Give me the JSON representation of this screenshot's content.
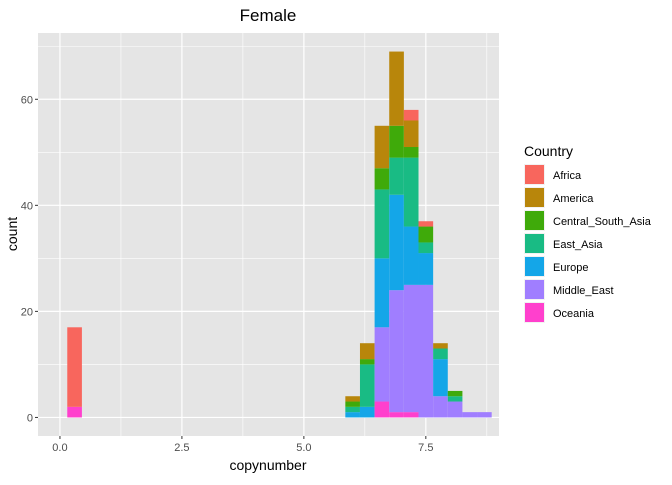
{
  "chart_data": {
    "type": "bar",
    "stacked": true,
    "title": "Female",
    "xlabel": "copynumber",
    "ylabel": "count",
    "xlim": [
      -0.45,
      9.0
    ],
    "ylim": [
      -3.5,
      72.5
    ],
    "x_ticks": [
      0,
      2.5,
      5,
      7.5
    ],
    "x_tick_labels": [
      "0.0",
      "2.5",
      "5.0",
      "7.5"
    ],
    "y_ticks": [
      0,
      20,
      40,
      60
    ],
    "y_tick_labels": [
      "0",
      "20",
      "40",
      "60"
    ],
    "grid": true,
    "legend_position": "right",
    "legend_title": "Country",
    "bin_width": 0.3,
    "bins": [
      0.3,
      6.0,
      6.3,
      6.6,
      6.9,
      7.2,
      7.5,
      7.8,
      8.1,
      8.4,
      8.7
    ],
    "series": [
      {
        "name": "Oceania",
        "color": "#FF40CD",
        "values": [
          2,
          0,
          0,
          3,
          1,
          1,
          0,
          0,
          0,
          0,
          0
        ]
      },
      {
        "name": "Middle_East",
        "color": "#A07EFF",
        "values": [
          0,
          0,
          0,
          14,
          23,
          24,
          25,
          4,
          3,
          1,
          1
        ]
      },
      {
        "name": "Europe",
        "color": "#14A6E8",
        "values": [
          0,
          1,
          2,
          13,
          18,
          11,
          6,
          7,
          0,
          0,
          0
        ]
      },
      {
        "name": "East_Asia",
        "color": "#19BB84",
        "values": [
          0,
          1,
          8,
          13,
          7,
          13,
          2,
          2,
          1,
          0,
          0
        ]
      },
      {
        "name": "Central_South_Asia",
        "color": "#3FAA0A",
        "values": [
          0,
          1,
          1,
          4,
          6,
          2,
          3,
          0,
          1,
          0,
          0
        ]
      },
      {
        "name": "America",
        "color": "#B8860B",
        "values": [
          0,
          1,
          3,
          8,
          14,
          5,
          0,
          1,
          0,
          0,
          0
        ]
      },
      {
        "name": "Africa",
        "color": "#F8665D",
        "values": [
          15,
          0,
          0,
          0,
          0,
          2,
          1,
          0,
          0,
          0,
          0
        ]
      }
    ],
    "legend_order": [
      "Africa",
      "America",
      "Central_South_Asia",
      "East_Asia",
      "Europe",
      "Middle_East",
      "Oceania"
    ],
    "panel_color": "#E5E5E5",
    "grid_color": "#FFFFFF"
  }
}
